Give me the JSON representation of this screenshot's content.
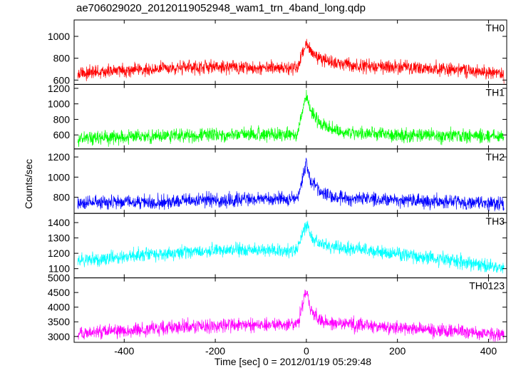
{
  "chart_data": {
    "type": "line",
    "title": "ae706029020_20120119052948_wam1_trn_4band_long.qdp",
    "xlabel": "Time [sec] 0 = 2012/01/19 05:29:48",
    "ylabel": "Counts/sec",
    "xlim": [
      -510,
      440
    ],
    "xticks": [
      -400,
      -200,
      0,
      200,
      400
    ],
    "grid": false,
    "panels": [
      {
        "name": "TH0",
        "color": "#ff0000",
        "ylim": [
          560,
          1150
        ],
        "yticks": [
          600,
          800,
          1000
        ],
        "x": [
          -500,
          -400,
          -300,
          -200,
          -100,
          -20,
          0,
          10,
          30,
          60,
          100,
          200,
          300,
          400,
          430
        ],
        "y": [
          660,
          690,
          710,
          720,
          710,
          705,
          950,
          860,
          800,
          760,
          730,
          720,
          700,
          670,
          650
        ]
      },
      {
        "name": "TH1",
        "color": "#00ff00",
        "ylim": [
          420,
          1250
        ],
        "yticks": [
          600,
          800,
          1000,
          1200
        ],
        "x": [
          -500,
          -400,
          -300,
          -200,
          -100,
          -20,
          0,
          10,
          30,
          60,
          100,
          200,
          300,
          400,
          430
        ],
        "y": [
          560,
          575,
          590,
          600,
          605,
          610,
          1100,
          900,
          740,
          660,
          620,
          600,
          590,
          580,
          575
        ]
      },
      {
        "name": "TH2",
        "color": "#0000ff",
        "ylim": [
          640,
          1280
        ],
        "yticks": [
          800,
          1000,
          1200
        ],
        "x": [
          -500,
          -400,
          -300,
          -200,
          -100,
          -20,
          0,
          10,
          30,
          60,
          100,
          200,
          300,
          400,
          430
        ],
        "y": [
          740,
          750,
          760,
          775,
          780,
          780,
          1150,
          960,
          850,
          810,
          790,
          770,
          760,
          740,
          730
        ]
      },
      {
        "name": "TH3",
        "color": "#00ffff",
        "ylim": [
          1040,
          1460
        ],
        "yticks": [
          1100,
          1200,
          1300,
          1400
        ],
        "x": [
          -500,
          -400,
          -300,
          -200,
          -100,
          -20,
          0,
          10,
          30,
          60,
          100,
          200,
          300,
          400,
          430
        ],
        "y": [
          1150,
          1180,
          1200,
          1220,
          1220,
          1220,
          1390,
          1310,
          1260,
          1240,
          1230,
          1200,
          1160,
          1120,
          1100
        ]
      },
      {
        "name": "TH0123",
        "color": "#ff00ff",
        "ylim": [
          2800,
          5000
        ],
        "yticks": [
          3000,
          3500,
          4000,
          4500,
          5000
        ],
        "x": [
          -500,
          -400,
          -300,
          -200,
          -100,
          -20,
          0,
          10,
          30,
          60,
          100,
          200,
          300,
          400,
          430
        ],
        "y": [
          3100,
          3200,
          3300,
          3380,
          3400,
          3400,
          4600,
          3900,
          3550,
          3460,
          3400,
          3300,
          3200,
          3100,
          3050
        ]
      }
    ]
  }
}
